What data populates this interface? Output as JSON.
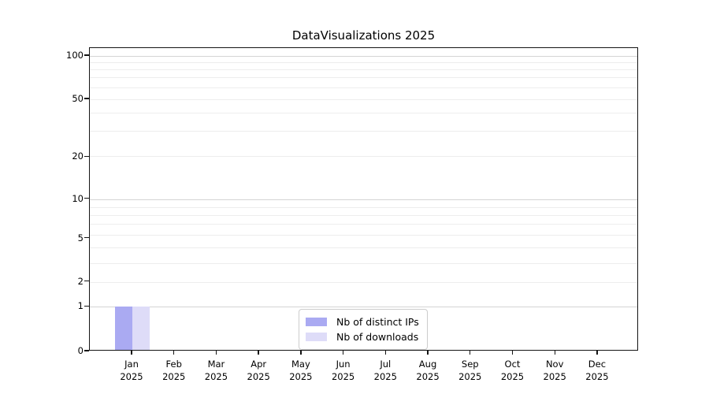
{
  "title": "DataVisualizations 2025",
  "colors": {
    "bar_distinct_ips": "#aaaaf2",
    "bar_downloads": "#dedcf8",
    "grid_major": "#d4d4d4",
    "grid_minor": "#ededed",
    "axis": "#141414"
  },
  "chart_data": {
    "type": "bar",
    "title": "DataVisualizations 2025",
    "categories": [
      "Jan 2025",
      "Feb 2025",
      "Mar 2025",
      "Apr 2025",
      "May 2025",
      "Jun 2025",
      "Jul 2025",
      "Aug 2025",
      "Sep 2025",
      "Oct 2025",
      "Nov 2025",
      "Dec 2025"
    ],
    "x_tick_months": [
      "Jan",
      "Feb",
      "Mar",
      "Apr",
      "May",
      "Jun",
      "Jul",
      "Aug",
      "Sep",
      "Oct",
      "Nov",
      "Dec"
    ],
    "x_tick_year": "2025",
    "series": [
      {
        "name": "Nb of distinct IPs",
        "color": "#aaaaf2",
        "values": [
          1,
          0,
          0,
          0,
          0,
          0,
          0,
          0,
          0,
          0,
          0,
          0
        ]
      },
      {
        "name": "Nb of downloads",
        "color": "#dedcf8",
        "values": [
          1,
          0,
          0,
          0,
          0,
          0,
          0,
          0,
          0,
          0,
          0,
          0
        ]
      }
    ],
    "yticks": [
      "0",
      "1",
      "2",
      "5",
      "10",
      "20",
      "50",
      "100"
    ],
    "yscale": "symlog-like (log above 1, linear 0-1)",
    "ylim": [
      0,
      110
    ],
    "xlabel": "",
    "ylabel": "",
    "grid": "horizontal, major (1/10/100) darker + log minors",
    "legend_position": "inside bottom-center"
  }
}
